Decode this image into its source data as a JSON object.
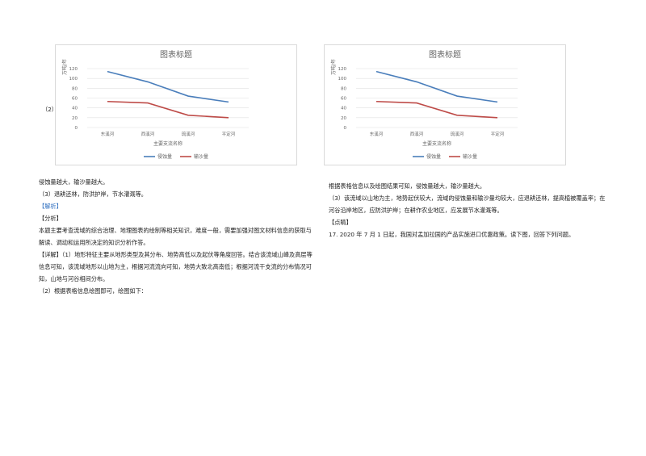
{
  "chart_data": [
    {
      "type": "line",
      "title": "图表标题",
      "y_label": "万吨/年",
      "x_label": "主要支流名称",
      "categories": [
        "东溪河",
        "西溪河",
        "琉溪河",
        "平定河"
      ],
      "series": [
        {
          "name": "侵蚀量",
          "color": "#4a7ebb",
          "values": [
            114,
            93,
            64,
            52
          ]
        },
        {
          "name": "输沙量",
          "color": "#be4b48",
          "values": [
            53,
            50,
            25,
            20
          ]
        }
      ],
      "ylim": [
        0,
        120
      ],
      "yticks": [
        0,
        20,
        40,
        60,
        80,
        100,
        120
      ],
      "grid": true,
      "legend": "bottom"
    },
    {
      "type": "line",
      "title": "图表标题",
      "y_label": "万吨/年",
      "x_label": "主要支流名称",
      "categories": [
        "东溪河",
        "西溪河",
        "琉溪河",
        "平定河"
      ],
      "series": [
        {
          "name": "侵蚀量",
          "color": "#4a7ebb",
          "values": [
            114,
            93,
            64,
            52
          ]
        },
        {
          "name": "输沙量",
          "color": "#be4b48",
          "values": [
            53,
            50,
            25,
            20
          ]
        }
      ],
      "ylim": [
        0,
        120
      ],
      "yticks": [
        0,
        20,
        40,
        60,
        80,
        100,
        120
      ],
      "grid": true,
      "legend": "bottom"
    }
  ],
  "left": {
    "marker": "（2）",
    "lines": [
      "侵蚀量越大，输沙量越大。",
      "（3）退耕还林，防洪护岸，节水灌溉等。",
      "【解析】",
      "【分析】",
      "本题主要考查流域的综合治理、地理图表的绘制等相关知识，难度一般，需要加强对图文材料信息的获取与解读、调动和运用所决定的知识分析作答。",
      "【详解】（1）地形特征主要从地形类型及其分布、地势高低以及起伏等角度回答。结合该流域山峰及高层等信息可知，该流域地形以山地为主，根据河流流向可知，地势大致北高南低；根据河流干支流的分布情况可知，山地与河谷相间分布。",
      "（2）根据表格信息绘图即可，绘图如下："
    ]
  },
  "right": {
    "lines": [
      "根据表格信息以及绘图结果可知，侵蚀量越大，输沙量越大。",
      "（3）该流域以山地为主，地势起伏较大，流域的侵蚀量和输沙量均较大，应退耕还林，提高植被覆盖率；在河谷沿岸地区，应防洪护岸；在耕作农业地区，应发展节水灌溉等。",
      "【点睛】",
      "17. 2020 年 7 月 1 日起，我国对孟加拉国的产品实施进口优惠政策。读下图，回答下列问题。"
    ]
  }
}
